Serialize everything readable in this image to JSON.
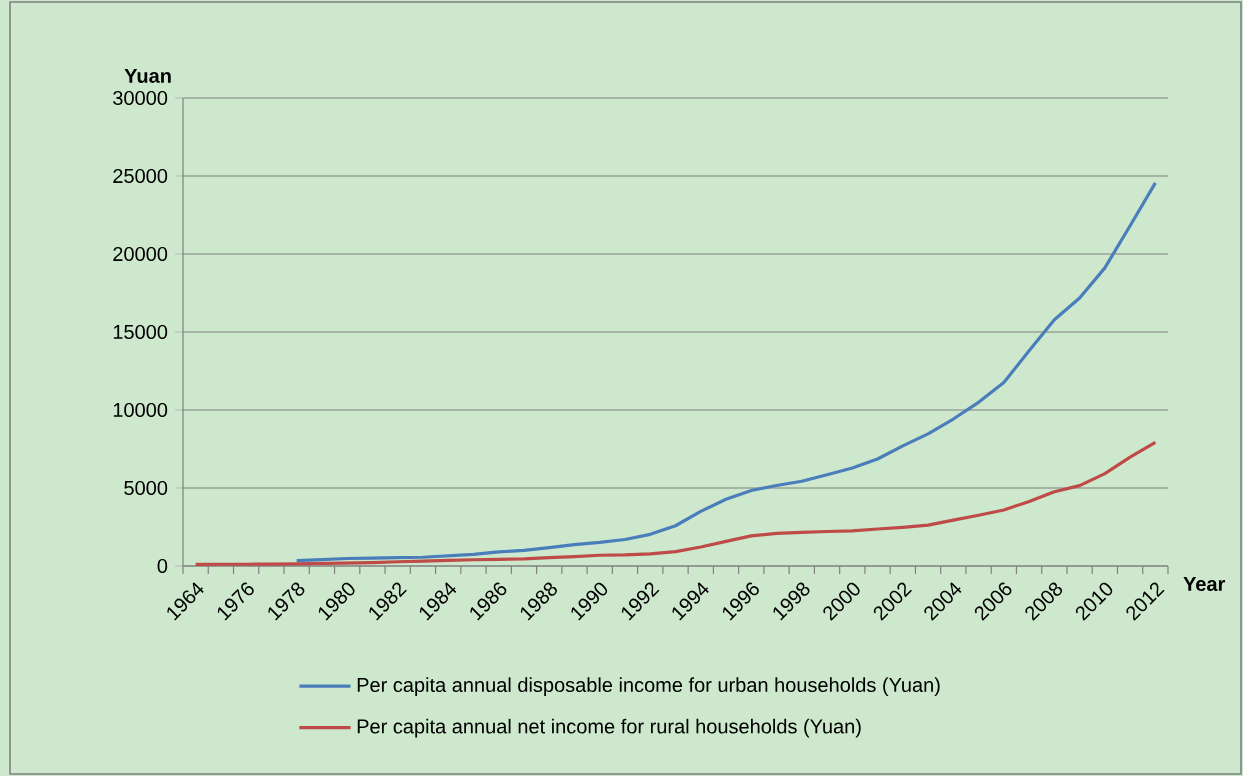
{
  "chart_data": {
    "type": "line",
    "xlabel": "Year",
    "ylabel": "Yuan",
    "categories": [
      "1964",
      null,
      "1976",
      null,
      "1978",
      null,
      "1980",
      null,
      "1982",
      null,
      "1984",
      null,
      "1986",
      null,
      "1988",
      null,
      "1990",
      null,
      "1992",
      null,
      "1994",
      null,
      "1996",
      null,
      "1998",
      null,
      "2000",
      null,
      "2002",
      null,
      "2004",
      null,
      "2006",
      null,
      "2008",
      null,
      "2010",
      null,
      "2012"
    ],
    "series": [
      {
        "name": "Per capita annual disposable income for urban households (Yuan)",
        "color": "#4a7ebb",
        "values": [
          null,
          null,
          null,
          null,
          340,
          410,
          480,
          500,
          540,
          560,
          650,
          740,
          900,
          1000,
          1180,
          1370,
          1510,
          1700,
          2030,
          2580,
          3500,
          4280,
          4840,
          5160,
          5430,
          5850,
          6280,
          6860,
          7700,
          8470,
          9420,
          10490,
          11760,
          13790,
          15780,
          17180,
          19110,
          21810,
          24560
        ]
      },
      {
        "name": "Per capita annual net income for rural households (Yuan)",
        "color": "#be4b48",
        "values": [
          100,
          110,
          110,
          120,
          130,
          160,
          190,
          220,
          270,
          310,
          360,
          400,
          420,
          460,
          540,
          600,
          690,
          710,
          780,
          920,
          1220,
          1580,
          1930,
          2090,
          2160,
          2210,
          2250,
          2370,
          2480,
          2620,
          2940,
          3250,
          3590,
          4140,
          4760,
          5150,
          5920,
          6980,
          7920
        ]
      }
    ],
    "ylim": [
      0,
      30000
    ],
    "yticks": [
      0,
      5000,
      10000,
      15000,
      20000,
      25000,
      30000
    ],
    "grid": "y",
    "legend": "bottom",
    "marker": "none",
    "line_style": "solid"
  }
}
